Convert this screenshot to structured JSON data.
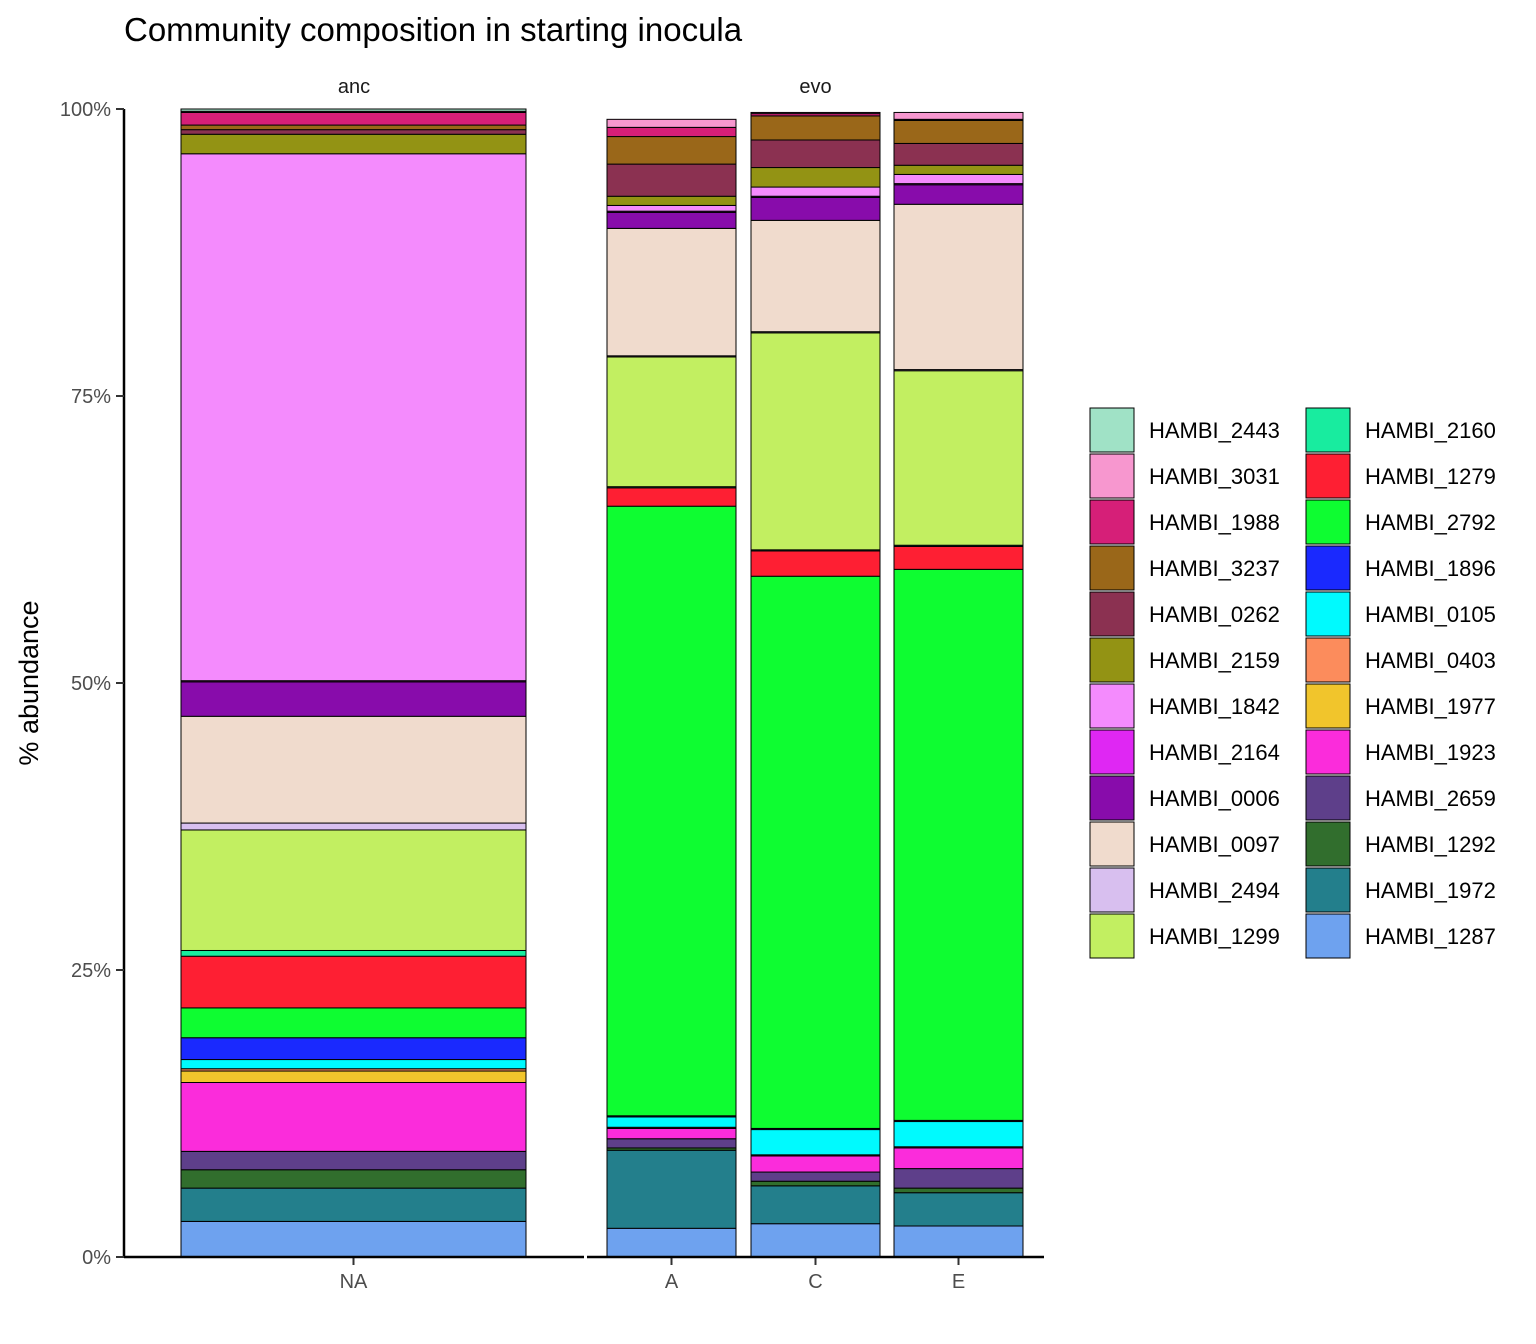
{
  "chart_data": {
    "type": "bar",
    "stacked": true,
    "title": "Community composition in starting inocula",
    "xlabel": "",
    "ylabel": "% abundance",
    "ylim": [
      0,
      100
    ],
    "yticks": [
      "0%",
      "25%",
      "50%",
      "75%",
      "100%"
    ],
    "legend_position": "right",
    "facets": [
      {
        "label": "anc",
        "categories": [
          "NA"
        ],
        "bars": [
          {
            "category": "NA",
            "segments": [
              {
                "name": "HAMBI_1287",
                "value": 3.1
              },
              {
                "name": "HAMBI_1972",
                "value": 2.9
              },
              {
                "name": "HAMBI_1292",
                "value": 1.6
              },
              {
                "name": "HAMBI_2659",
                "value": 1.6
              },
              {
                "name": "HAMBI_1923",
                "value": 6.0
              },
              {
                "name": "HAMBI_1977",
                "value": 1.0
              },
              {
                "name": "HAMBI_0403",
                "value": 0.2
              },
              {
                "name": "HAMBI_0105",
                "value": 0.8
              },
              {
                "name": "HAMBI_1896",
                "value": 1.9
              },
              {
                "name": "HAMBI_2792",
                "value": 2.6
              },
              {
                "name": "HAMBI_1279",
                "value": 4.5
              },
              {
                "name": "HAMBI_2160",
                "value": 0.5
              },
              {
                "name": "HAMBI_1299",
                "value": 10.5
              },
              {
                "name": "HAMBI_2494",
                "value": 0.6
              },
              {
                "name": "HAMBI_0097",
                "value": 9.3
              },
              {
                "name": "HAMBI_0006",
                "value": 3.0
              },
              {
                "name": "HAMBI_2164",
                "value": 0.1
              },
              {
                "name": "HAMBI_1842",
                "value": 45.9
              },
              {
                "name": "HAMBI_2159",
                "value": 1.7
              },
              {
                "name": "HAMBI_0262",
                "value": 0.4
              },
              {
                "name": "HAMBI_3237",
                "value": 0.4
              },
              {
                "name": "HAMBI_1988",
                "value": 1.1
              },
              {
                "name": "HAMBI_3031",
                "value": 0.1
              },
              {
                "name": "HAMBI_2443",
                "value": 0.2
              }
            ]
          }
        ]
      },
      {
        "label": "evo",
        "categories": [
          "A",
          "C",
          "E"
        ],
        "bars": [
          {
            "category": "A",
            "segments": [
              {
                "name": "HAMBI_1287",
                "value": 2.5
              },
              {
                "name": "HAMBI_1972",
                "value": 6.8
              },
              {
                "name": "HAMBI_1292",
                "value": 0.2
              },
              {
                "name": "HAMBI_2659",
                "value": 0.8
              },
              {
                "name": "HAMBI_1923",
                "value": 0.9
              },
              {
                "name": "HAMBI_1977",
                "value": 0.0
              },
              {
                "name": "HAMBI_0403",
                "value": 0.1
              },
              {
                "name": "HAMBI_0105",
                "value": 0.9
              },
              {
                "name": "HAMBI_1896",
                "value": 0.1
              },
              {
                "name": "HAMBI_2792",
                "value": 53.1
              },
              {
                "name": "HAMBI_1279",
                "value": 1.6
              },
              {
                "name": "HAMBI_2160",
                "value": 0.1
              },
              {
                "name": "HAMBI_1299",
                "value": 11.3
              },
              {
                "name": "HAMBI_2494",
                "value": 0.1
              },
              {
                "name": "HAMBI_0097",
                "value": 11.1
              },
              {
                "name": "HAMBI_0006",
                "value": 1.4
              },
              {
                "name": "HAMBI_2164",
                "value": 0.1
              },
              {
                "name": "HAMBI_1842",
                "value": 0.5
              },
              {
                "name": "HAMBI_2159",
                "value": 0.8
              },
              {
                "name": "HAMBI_0262",
                "value": 2.8
              },
              {
                "name": "HAMBI_3237",
                "value": 2.4
              },
              {
                "name": "HAMBI_1988",
                "value": 0.8
              },
              {
                "name": "HAMBI_3031",
                "value": 0.7
              },
              {
                "name": "HAMBI_2443",
                "value": 0.0
              }
            ]
          },
          {
            "category": "C",
            "segments": [
              {
                "name": "HAMBI_1287",
                "value": 2.9
              },
              {
                "name": "HAMBI_1972",
                "value": 3.3
              },
              {
                "name": "HAMBI_1292",
                "value": 0.4
              },
              {
                "name": "HAMBI_2659",
                "value": 0.8
              },
              {
                "name": "HAMBI_1923",
                "value": 1.4
              },
              {
                "name": "HAMBI_1977",
                "value": 0.0
              },
              {
                "name": "HAMBI_0403",
                "value": 0.1
              },
              {
                "name": "HAMBI_0105",
                "value": 2.2
              },
              {
                "name": "HAMBI_1896",
                "value": 0.1
              },
              {
                "name": "HAMBI_2792",
                "value": 48.1
              },
              {
                "name": "HAMBI_1279",
                "value": 2.2
              },
              {
                "name": "HAMBI_2160",
                "value": 0.1
              },
              {
                "name": "HAMBI_1299",
                "value": 18.9
              },
              {
                "name": "HAMBI_2494",
                "value": 0.1
              },
              {
                "name": "HAMBI_0097",
                "value": 9.7
              },
              {
                "name": "HAMBI_0006",
                "value": 2.0
              },
              {
                "name": "HAMBI_2164",
                "value": 0.1
              },
              {
                "name": "HAMBI_1842",
                "value": 0.8
              },
              {
                "name": "HAMBI_2159",
                "value": 1.7
              },
              {
                "name": "HAMBI_0262",
                "value": 2.4
              },
              {
                "name": "HAMBI_3237",
                "value": 2.1
              },
              {
                "name": "HAMBI_1988",
                "value": 0.2
              },
              {
                "name": "HAMBI_3031",
                "value": 0.1
              },
              {
                "name": "HAMBI_2443",
                "value": 0.0
              }
            ]
          },
          {
            "category": "E",
            "segments": [
              {
                "name": "HAMBI_1287",
                "value": 2.7
              },
              {
                "name": "HAMBI_1972",
                "value": 2.9
              },
              {
                "name": "HAMBI_1292",
                "value": 0.4
              },
              {
                "name": "HAMBI_2659",
                "value": 1.7
              },
              {
                "name": "HAMBI_1923",
                "value": 1.8
              },
              {
                "name": "HAMBI_1977",
                "value": 0.0
              },
              {
                "name": "HAMBI_0403",
                "value": 0.1
              },
              {
                "name": "HAMBI_0105",
                "value": 2.2
              },
              {
                "name": "HAMBI_1896",
                "value": 0.1
              },
              {
                "name": "HAMBI_2792",
                "value": 48.0
              },
              {
                "name": "HAMBI_1279",
                "value": 2.0
              },
              {
                "name": "HAMBI_2160",
                "value": 0.1
              },
              {
                "name": "HAMBI_1299",
                "value": 15.2
              },
              {
                "name": "HAMBI_2494",
                "value": 0.1
              },
              {
                "name": "HAMBI_0097",
                "value": 14.4
              },
              {
                "name": "HAMBI_0006",
                "value": 1.7
              },
              {
                "name": "HAMBI_2164",
                "value": 0.1
              },
              {
                "name": "HAMBI_1842",
                "value": 0.8
              },
              {
                "name": "HAMBI_2159",
                "value": 0.8
              },
              {
                "name": "HAMBI_0262",
                "value": 1.9
              },
              {
                "name": "HAMBI_3237",
                "value": 2.0
              },
              {
                "name": "HAMBI_1988",
                "value": 0.1
              },
              {
                "name": "HAMBI_3031",
                "value": 0.6
              },
              {
                "name": "HAMBI_2443",
                "value": 0.0
              }
            ]
          }
        ]
      }
    ],
    "legend": [
      {
        "name": "HAMBI_2443",
        "color": "#a0e2c6"
      },
      {
        "name": "HAMBI_3031",
        "color": "#f797cf"
      },
      {
        "name": "HAMBI_1988",
        "color": "#d61f78"
      },
      {
        "name": "HAMBI_3237",
        "color": "#9a6719"
      },
      {
        "name": "HAMBI_0262",
        "color": "#8b3151"
      },
      {
        "name": "HAMBI_2159",
        "color": "#939314"
      },
      {
        "name": "HAMBI_1842",
        "color": "#f48bfd"
      },
      {
        "name": "HAMBI_2164",
        "color": "#df27f3"
      },
      {
        "name": "HAMBI_0006",
        "color": "#880cab"
      },
      {
        "name": "HAMBI_0097",
        "color": "#f0dbcd"
      },
      {
        "name": "HAMBI_2494",
        "color": "#d8bfef"
      },
      {
        "name": "HAMBI_1299",
        "color": "#c2ef61"
      },
      {
        "name": "HAMBI_2160",
        "color": "#18ec9f"
      },
      {
        "name": "HAMBI_1279",
        "color": "#fe1f33"
      },
      {
        "name": "HAMBI_2792",
        "color": "#0efd31"
      },
      {
        "name": "HAMBI_1896",
        "color": "#1a29fe"
      },
      {
        "name": "HAMBI_0105",
        "color": "#00fafe"
      },
      {
        "name": "HAMBI_0403",
        "color": "#fc8c5c"
      },
      {
        "name": "HAMBI_1977",
        "color": "#f1c52c"
      },
      {
        "name": "HAMBI_1923",
        "color": "#fb2cdb"
      },
      {
        "name": "HAMBI_2659",
        "color": "#5e3f8a"
      },
      {
        "name": "HAMBI_1292",
        "color": "#316e2d"
      },
      {
        "name": "HAMBI_1972",
        "color": "#237f8c"
      },
      {
        "name": "HAMBI_1287",
        "color": "#6ea2ef"
      }
    ]
  }
}
